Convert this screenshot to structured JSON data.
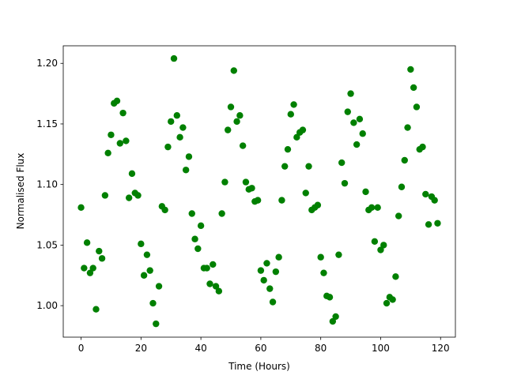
{
  "chart_data": {
    "type": "scatter",
    "xlabel": "Time (Hours)",
    "ylabel": "Normalised Flux",
    "color": "#008000",
    "xlim": [
      -5.95,
      124.95
    ],
    "xticks": [
      0,
      20,
      40,
      60,
      80,
      100,
      120
    ],
    "ylim": [
      0.974,
      1.2145
    ],
    "yticks": [
      {
        "value": 1.0,
        "label": "1.00"
      },
      {
        "value": 1.05,
        "label": "1.05"
      },
      {
        "value": 1.1,
        "label": "1.10"
      },
      {
        "value": 1.15,
        "label": "1.15"
      },
      {
        "value": 1.2,
        "label": "1.20"
      }
    ],
    "x": [
      0,
      1,
      2,
      3,
      4,
      5,
      6,
      7,
      8,
      9,
      10,
      11,
      12,
      13,
      14,
      15,
      16,
      17,
      18,
      19,
      20,
      21,
      22,
      23,
      24,
      25,
      26,
      27,
      28,
      29,
      30,
      31,
      32,
      33,
      34,
      35,
      36,
      37,
      38,
      39,
      40,
      41,
      42,
      43,
      44,
      45,
      46,
      47,
      48,
      49,
      50,
      51,
      52,
      53,
      54,
      55,
      56,
      57,
      58,
      59,
      60,
      61,
      62,
      63,
      64,
      65,
      66,
      67,
      68,
      69,
      70,
      71,
      72,
      73,
      74,
      75,
      76,
      77,
      78,
      79,
      80,
      81,
      82,
      83,
      84,
      85,
      86,
      87,
      88,
      89,
      90,
      91,
      92,
      93,
      94,
      95,
      96,
      97,
      98,
      99,
      100,
      101,
      102,
      103,
      104,
      105,
      106,
      107,
      108,
      109,
      110,
      111,
      112,
      113,
      114,
      115,
      116,
      117,
      118,
      119
    ],
    "values": [
      1.081,
      1.031,
      1.052,
      1.027,
      1.031,
      0.997,
      1.045,
      1.039,
      1.091,
      1.126,
      1.141,
      1.167,
      1.169,
      1.134,
      1.159,
      1.136,
      1.089,
      1.109,
      1.093,
      1.091,
      1.051,
      1.025,
      1.042,
      1.029,
      1.002,
      0.985,
      1.016,
      1.082,
      1.079,
      1.131,
      1.152,
      1.204,
      1.157,
      1.139,
      1.147,
      1.112,
      1.123,
      1.076,
      1.055,
      1.047,
      1.066,
      1.031,
      1.031,
      1.018,
      1.034,
      1.016,
      1.012,
      1.076,
      1.102,
      1.145,
      1.164,
      1.194,
      1.152,
      1.157,
      1.132,
      1.102,
      1.096,
      1.097,
      1.086,
      1.087,
      1.029,
      1.021,
      1.035,
      1.014,
      1.003,
      1.028,
      1.04,
      1.087,
      1.115,
      1.129,
      1.158,
      1.166,
      1.139,
      1.143,
      1.145,
      1.093,
      1.115,
      1.079,
      1.081,
      1.083,
      1.04,
      1.027,
      1.008,
      1.007,
      0.987,
      0.991,
      1.042,
      1.118,
      1.101,
      1.16,
      1.175,
      1.151,
      1.133,
      1.154,
      1.142,
      1.094,
      1.079,
      1.081,
      1.053,
      1.081,
      1.046,
      1.05,
      1.002,
      1.007,
      1.005,
      1.024,
      1.074,
      1.098,
      1.12,
      1.147,
      1.195,
      1.18,
      1.164,
      1.129,
      1.131,
      1.092,
      1.067,
      1.09,
      1.087,
      1.068
    ]
  }
}
